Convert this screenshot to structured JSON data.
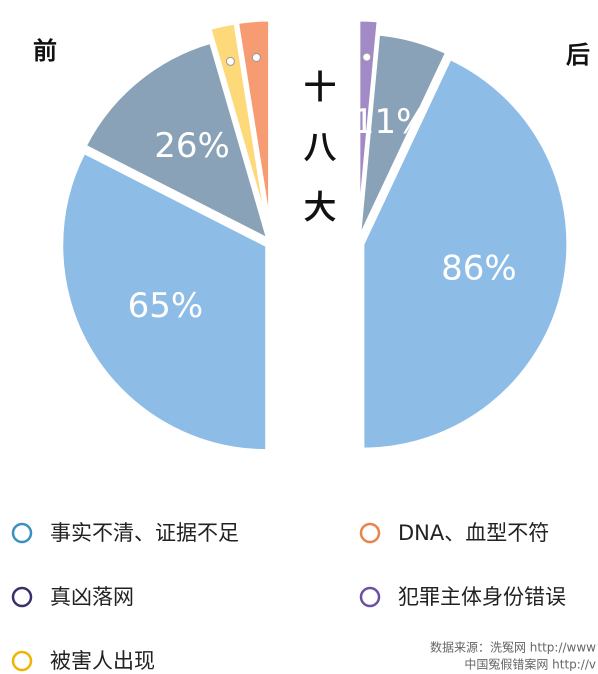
{
  "chart_data": [
    {
      "type": "pie",
      "title": "前",
      "values": [
        65,
        26,
        4,
        5
      ],
      "value_labels": [
        "65%",
        "26%",
        null,
        null
      ],
      "colors": [
        "#8dbde6",
        "#8aa2b7",
        "#fdd97a",
        "#f79b73"
      ]
    },
    {
      "type": "pie",
      "title": "后",
      "values": [
        3,
        11,
        86
      ],
      "value_labels": [
        null,
        "11%",
        "86%"
      ],
      "colors": [
        "#a28ac6",
        "#8aa2b7",
        "#8dbde6"
      ]
    }
  ],
  "annotation": "十八大",
  "legend": [
    {
      "name": "事实不清、证据不足",
      "color": "#3a90c0"
    },
    {
      "name": "DNA、血型不符",
      "color": "#e9834b"
    },
    {
      "name": "真凶落网",
      "color": "#3b2f6b"
    },
    {
      "name": "犯罪主体身份错误",
      "color": "#6c50a2"
    },
    {
      "name": "被害人出现",
      "color": "#f0b400"
    }
  ],
  "source": [
    "数据来源：洗冤网 http://www",
    "中国冤假错案网 http://v"
  ]
}
